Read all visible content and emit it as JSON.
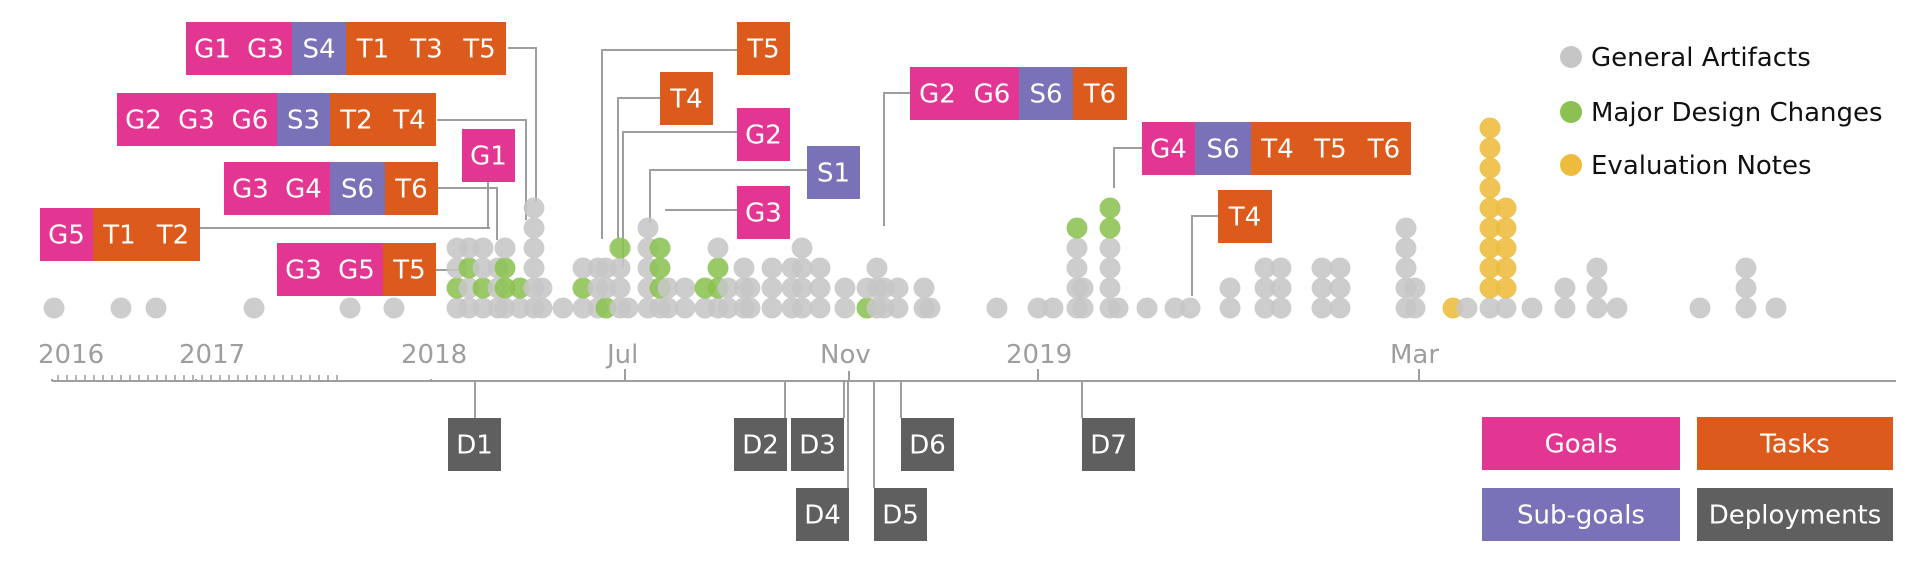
{
  "colors": {
    "goal": "#e33692",
    "subgoal": "#7a72b8",
    "task": "#dc5a1c",
    "deploy": "#5f5f5f",
    "general": "#c6c6c6",
    "major": "#8cc152",
    "evaluation": "#edbc3d",
    "axis": "#9e9e9e",
    "connector": "#9e9e9e"
  },
  "legend_dots": [
    {
      "label": "General Artifacts",
      "kind": "general"
    },
    {
      "label": "Major Design Changes",
      "kind": "major"
    },
    {
      "label": "Evaluation Notes",
      "kind": "evaluation"
    }
  ],
  "legend_boxes": [
    {
      "label": "Goals",
      "kind": "goal"
    },
    {
      "label": "Tasks",
      "kind": "task"
    },
    {
      "label": "Sub-goals",
      "kind": "subgoal"
    },
    {
      "label": "Deployments",
      "kind": "deploy"
    }
  ],
  "axis_labels": [
    "2016",
    "2017",
    "2018",
    "Jul",
    "Nov",
    "2019",
    "Mar"
  ],
  "groups": [
    {
      "tags": [
        [
          "G1",
          "goal"
        ],
        [
          "G3",
          "goal"
        ],
        [
          "S4",
          "subgoal"
        ],
        [
          "T1",
          "task"
        ],
        [
          "T3",
          "task"
        ],
        [
          "T5",
          "task"
        ]
      ]
    },
    {
      "tags": [
        [
          "G2",
          "goal"
        ],
        [
          "G3",
          "goal"
        ],
        [
          "G6",
          "goal"
        ],
        [
          "S3",
          "subgoal"
        ],
        [
          "T2",
          "task"
        ],
        [
          "T4",
          "task"
        ]
      ]
    },
    {
      "tags": [
        [
          "G1",
          "goal"
        ]
      ]
    },
    {
      "tags": [
        [
          "G3",
          "goal"
        ],
        [
          "G4",
          "goal"
        ],
        [
          "S6",
          "subgoal"
        ],
        [
          "T6",
          "task"
        ]
      ]
    },
    {
      "tags": [
        [
          "G5",
          "goal"
        ],
        [
          "T1",
          "task"
        ],
        [
          "T2",
          "task"
        ]
      ]
    },
    {
      "tags": [
        [
          "G3",
          "goal"
        ],
        [
          "G5",
          "goal"
        ],
        [
          "T5",
          "task"
        ]
      ]
    },
    {
      "tags": [
        [
          "T5",
          "task"
        ]
      ]
    },
    {
      "tags": [
        [
          "T4",
          "task"
        ]
      ]
    },
    {
      "tags": [
        [
          "G2",
          "goal"
        ]
      ]
    },
    {
      "tags": [
        [
          "S1",
          "subgoal"
        ]
      ]
    },
    {
      "tags": [
        [
          "G3",
          "goal"
        ]
      ]
    },
    {
      "tags": [
        [
          "G2",
          "goal"
        ],
        [
          "G6",
          "goal"
        ],
        [
          "S6",
          "subgoal"
        ],
        [
          "T6",
          "task"
        ]
      ]
    },
    {
      "tags": [
        [
          "G4",
          "goal"
        ],
        [
          "S6",
          "subgoal"
        ],
        [
          "T4",
          "task"
        ],
        [
          "T5",
          "task"
        ],
        [
          "T6",
          "task"
        ]
      ]
    },
    {
      "tags": [
        [
          "T4",
          "task"
        ]
      ]
    }
  ],
  "deployments": [
    "D1",
    "D2",
    "D3",
    "D4",
    "D5",
    "D6",
    "D7"
  ]
}
